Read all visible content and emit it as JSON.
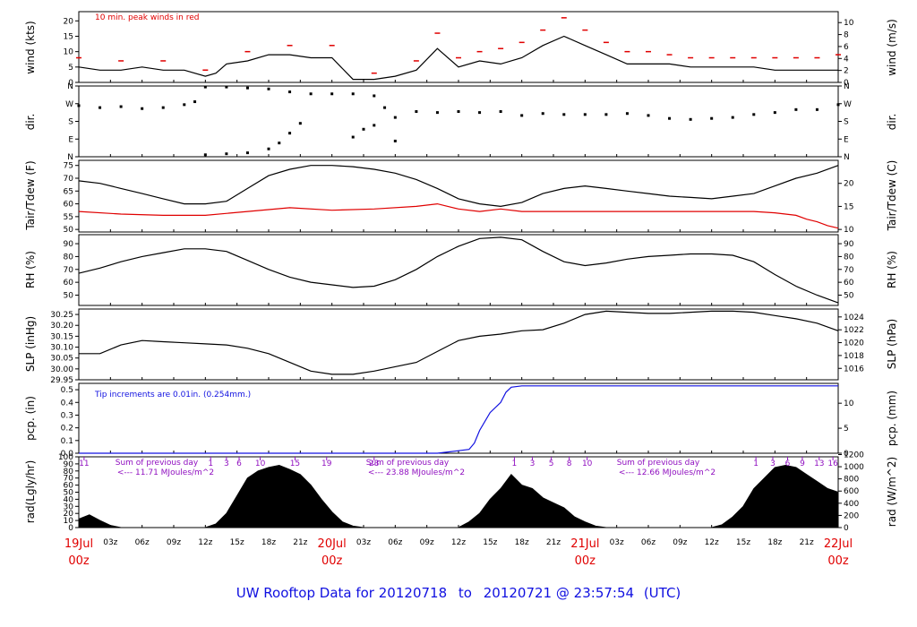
{
  "footer": {
    "prefix": "UW Rooftop Data for",
    "start": "20120718",
    "to": "to",
    "end": "20120721",
    "at": "@",
    "time": "23:57:54",
    "tz": "(UTC)"
  },
  "time_axis": {
    "hours_total": 72,
    "hour_ticks": [
      "03z",
      "06z",
      "09z",
      "12z",
      "15z",
      "18z",
      "21z"
    ],
    "day_labels": [
      {
        "hour": 0,
        "date": "19Jul",
        "time": "00z"
      },
      {
        "hour": 24,
        "date": "20Jul",
        "time": "00z"
      },
      {
        "hour": 48,
        "date": "21Jul",
        "time": "00z"
      },
      {
        "hour": 72,
        "date": "22Jul",
        "time": "00z"
      }
    ]
  },
  "colors": {
    "main": "#000000",
    "peak": "#e00000",
    "dew": "#e00000",
    "precip": "#1010e0",
    "note": "#9010c0",
    "footer": "#1010e0"
  },
  "chart_data": [
    {
      "id": "wind",
      "type": "line",
      "ylabel_left": "wind (kts)",
      "ylabel_right": "wind (m/s)",
      "annotation": "10 min. peak winds in red",
      "ylim": [
        0,
        23
      ],
      "left_ticks": [
        0,
        5,
        10,
        15,
        20
      ],
      "right_ticks": [
        0,
        2,
        4,
        6,
        8,
        10
      ],
      "right_factor": 0.5144,
      "series": [
        {
          "color": "#000000",
          "x": [
            0,
            2,
            4,
            6,
            8,
            10,
            12,
            13,
            14,
            16,
            18,
            20,
            22,
            24,
            26,
            28,
            30,
            32,
            34,
            36,
            38,
            40,
            42,
            44,
            46,
            48,
            50,
            52,
            54,
            56,
            58,
            60,
            62,
            64,
            66,
            68,
            70,
            72
          ],
          "y": [
            5,
            4,
            4,
            5,
            4,
            4,
            2,
            3,
            6,
            7,
            9,
            9,
            8,
            8,
            1,
            1,
            2,
            4,
            11,
            5,
            7,
            6,
            8,
            12,
            15,
            12,
            9,
            6,
            6,
            6,
            5,
            5,
            5,
            5,
            4,
            4,
            4,
            4
          ]
        },
        {
          "color": "#e00000",
          "style": "dashes",
          "x": [
            0,
            4,
            8,
            12,
            16,
            20,
            24,
            28,
            32,
            34,
            36,
            38,
            40,
            42,
            44,
            46,
            48,
            50,
            52,
            54,
            56,
            58,
            60,
            62,
            64,
            66,
            68,
            70,
            72
          ],
          "y": [
            8,
            7,
            7,
            4,
            10,
            12,
            12,
            3,
            7,
            16,
            8,
            10,
            11,
            13,
            17,
            21,
            17,
            13,
            10,
            10,
            9,
            8,
            8,
            8,
            8,
            8,
            8,
            8,
            9
          ]
        }
      ]
    },
    {
      "id": "dir",
      "type": "scatter",
      "ylabel_left": "dir.",
      "ylabel_right": "dir.",
      "ylim": [
        0,
        360
      ],
      "left_tick_labels": [
        "N",
        "E",
        "S",
        "W",
        "N"
      ],
      "tick_values": [
        0,
        90,
        180,
        270,
        360
      ],
      "series": [
        {
          "color": "#000000",
          "x": [
            0,
            2,
            4,
            6,
            8,
            10,
            11,
            12,
            14,
            16,
            18,
            20,
            22,
            24,
            26,
            28,
            29,
            30,
            32,
            34,
            36,
            38,
            40,
            42,
            44,
            46,
            48,
            50,
            52,
            54,
            56,
            58,
            60,
            62,
            64,
            66,
            68,
            70,
            72
          ],
          "y": [
            260,
            250,
            255,
            245,
            250,
            265,
            280,
            355,
            355,
            350,
            345,
            330,
            320,
            320,
            320,
            310,
            250,
            200,
            230,
            225,
            230,
            225,
            230,
            210,
            220,
            215,
            215,
            215,
            220,
            210,
            195,
            190,
            195,
            200,
            215,
            225,
            240,
            240,
            265
          ]
        },
        {
          "color": "#000000",
          "x": [
            12,
            14,
            16,
            18,
            19,
            20,
            21,
            26,
            27,
            28,
            30
          ],
          "y": [
            10,
            15,
            20,
            40,
            70,
            120,
            170,
            100,
            140,
            160,
            80
          ]
        }
      ]
    },
    {
      "id": "temp",
      "type": "line",
      "ylabel_left": "Tair/Tdew (F)",
      "ylabel_right": "Tair/Tdew (C)",
      "ylim": [
        49,
        77
      ],
      "left_ticks": [
        50,
        55,
        60,
        65,
        70,
        75
      ],
      "right_ticks": [
        10,
        15,
        20
      ],
      "series": [
        {
          "color": "#000000",
          "x": [
            0,
            2,
            4,
            6,
            8,
            10,
            12,
            14,
            16,
            18,
            20,
            22,
            24,
            26,
            28,
            30,
            32,
            34,
            36,
            38,
            40,
            42,
            44,
            46,
            48,
            50,
            52,
            54,
            56,
            58,
            60,
            62,
            64,
            66,
            68,
            70,
            72
          ],
          "y": [
            69,
            68,
            66,
            64,
            62,
            60,
            60,
            61,
            66,
            71,
            73.5,
            75,
            75,
            74.5,
            73.5,
            72,
            69.5,
            66,
            62,
            60,
            59,
            60.5,
            64,
            66,
            67,
            66,
            65,
            64,
            63,
            62.5,
            62,
            63,
            64,
            67,
            70,
            72,
            75
          ]
        },
        {
          "color": "#e00000",
          "x": [
            0,
            4,
            8,
            12,
            16,
            20,
            24,
            28,
            32,
            34,
            36,
            38,
            40,
            42,
            44,
            46,
            48,
            52,
            56,
            60,
            64,
            66,
            68,
            69,
            70,
            71,
            72
          ],
          "y": [
            57,
            56,
            55.5,
            55.5,
            57,
            58.5,
            57.5,
            58,
            59,
            60,
            58,
            57,
            58,
            57,
            57,
            57,
            57,
            57,
            57,
            57,
            57,
            56.5,
            55.5,
            54,
            53,
            51.5,
            50.5
          ]
        }
      ]
    },
    {
      "id": "rh",
      "type": "line",
      "ylabel_left": "RH (%)",
      "ylabel_right": "RH (%)",
      "ylim": [
        42,
        97
      ],
      "left_ticks": [
        50,
        60,
        70,
        80,
        90
      ],
      "right_ticks": [
        50,
        60,
        70,
        80,
        90
      ],
      "series": [
        {
          "color": "#000000",
          "x": [
            0,
            2,
            4,
            6,
            8,
            10,
            12,
            14,
            16,
            18,
            20,
            22,
            24,
            26,
            28,
            30,
            32,
            34,
            36,
            38,
            40,
            42,
            44,
            46,
            48,
            50,
            52,
            54,
            56,
            58,
            60,
            62,
            64,
            66,
            68,
            70,
            72
          ],
          "y": [
            67,
            71,
            76,
            80,
            83,
            86,
            86,
            84,
            77,
            70,
            64,
            60,
            58,
            56,
            57,
            62,
            70,
            80,
            88,
            94,
            95,
            93,
            84,
            76,
            73,
            75,
            78,
            80,
            81,
            82,
            82,
            81,
            76,
            66,
            57,
            50,
            44
          ]
        }
      ]
    },
    {
      "id": "slp",
      "type": "line",
      "ylabel_left": "SLP (inHg)",
      "ylabel_right": "SLP (hPa)",
      "ylim": [
        29.95,
        30.275
      ],
      "left_ticks": [
        29.95,
        30.0,
        30.05,
        30.1,
        30.15,
        30.2,
        30.25
      ],
      "right_ticks": [
        1016,
        1018,
        1020,
        1022,
        1024
      ],
      "series": [
        {
          "color": "#000000",
          "x": [
            0,
            2,
            4,
            6,
            8,
            10,
            12,
            14,
            16,
            18,
            20,
            22,
            24,
            26,
            28,
            30,
            32,
            34,
            36,
            38,
            40,
            42,
            44,
            46,
            48,
            50,
            52,
            54,
            56,
            58,
            60,
            62,
            64,
            66,
            68,
            70,
            72
          ],
          "y": [
            30.07,
            30.07,
            30.11,
            30.13,
            30.125,
            30.12,
            30.115,
            30.11,
            30.095,
            30.07,
            30.03,
            29.99,
            29.975,
            29.975,
            29.99,
            30.01,
            30.03,
            30.08,
            30.13,
            30.15,
            30.16,
            30.175,
            30.18,
            30.21,
            30.25,
            30.265,
            30.26,
            30.255,
            30.255,
            30.26,
            30.265,
            30.265,
            30.26,
            30.245,
            30.23,
            30.21,
            30.175
          ]
        }
      ]
    },
    {
      "id": "pcp",
      "type": "line",
      "ylabel_left": "pcp. (in)",
      "ylabel_right": "pcp. (mm)",
      "annotation": "Tip increments are 0.01in. (0.254mm.)",
      "ylim": [
        0,
        0.55
      ],
      "left_ticks": [
        0.0,
        0.1,
        0.2,
        0.3,
        0.4,
        0.5
      ],
      "right_ticks": [
        0,
        5,
        10
      ],
      "series": [
        {
          "color": "#1010e0",
          "x": [
            0,
            34,
            35,
            36,
            37,
            37.5,
            38,
            39,
            40,
            40.5,
            41,
            42,
            44,
            48,
            72
          ],
          "y": [
            0,
            0,
            0.01,
            0.02,
            0.03,
            0.08,
            0.18,
            0.32,
            0.4,
            0.48,
            0.52,
            0.53,
            0.53,
            0.53,
            0.53
          ]
        }
      ]
    },
    {
      "id": "rad",
      "type": "area",
      "ylabel_left": "rad(Lgly/hr)",
      "ylabel_right": "rad (W/m^2)",
      "ylim": [
        0,
        100
      ],
      "left_ticks": [
        0,
        10,
        20,
        30,
        40,
        50,
        60,
        70,
        80,
        90,
        100
      ],
      "right_ticks": [
        0,
        200,
        400,
        600,
        800,
        1000,
        1200
      ],
      "series": [
        {
          "color": "#000000",
          "x": [
            0,
            1,
            2,
            3,
            4,
            12,
            13,
            14,
            15,
            16,
            17,
            18,
            19,
            20,
            21,
            22,
            23,
            24,
            25,
            26,
            27,
            36,
            37,
            38,
            39,
            40,
            41,
            42,
            43,
            44,
            45,
            46,
            47,
            48,
            49,
            50,
            60,
            61,
            62,
            63,
            64,
            65,
            66,
            67,
            68,
            69,
            70,
            71,
            72
          ],
          "y": [
            12,
            18,
            10,
            3,
            0,
            0,
            5,
            20,
            45,
            70,
            80,
            85,
            88,
            82,
            75,
            60,
            40,
            22,
            8,
            2,
            0,
            0,
            8,
            20,
            40,
            55,
            75,
            60,
            55,
            42,
            35,
            28,
            15,
            8,
            2,
            0,
            0,
            4,
            15,
            30,
            55,
            70,
            85,
            88,
            85,
            75,
            65,
            55,
            50
          ]
        }
      ],
      "hour_markers": [
        [
          "11",
          "1",
          "3",
          "6",
          "10",
          "15",
          "19",
          "23"
        ],
        [
          "1",
          "3",
          "5",
          "8",
          "10"
        ],
        [
          "1",
          "3",
          "6",
          "9",
          "13",
          "16"
        ]
      ],
      "daily_notes": [
        {
          "title": "Sum of previous day",
          "value": "<--- 11.71 MJoules/m^2"
        },
        {
          "title": "Sum of previous day",
          "value": "<--- 23.88 MJoules/m^2"
        },
        {
          "title": "Sum of previous day",
          "value": "<--- 12.66 MJoules/m^2"
        }
      ]
    }
  ]
}
